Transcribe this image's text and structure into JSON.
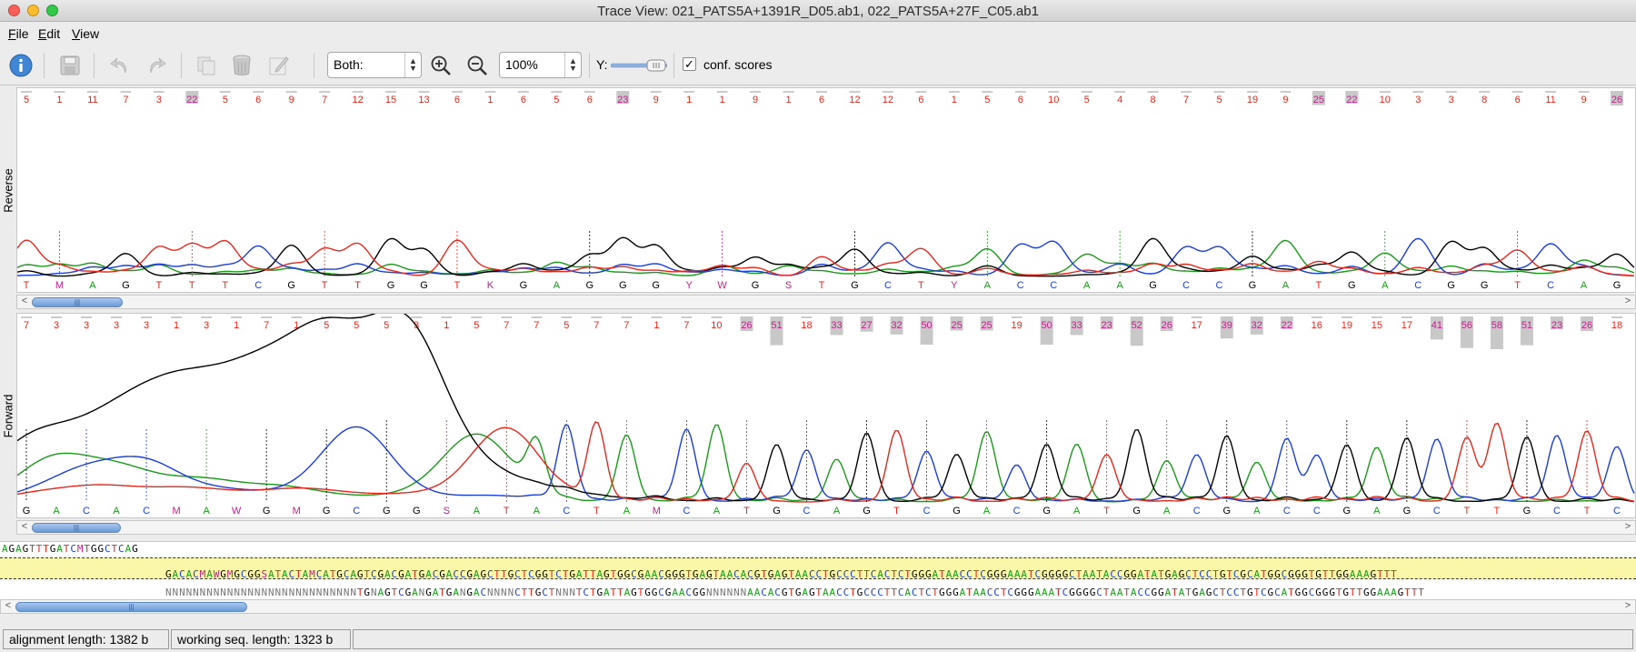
{
  "window": {
    "title": "Trace View: 021_PATS5A+1391R_D05.ab1, 022_PATS5A+27F_C05.ab1"
  },
  "menu": {
    "items": [
      {
        "label": "File",
        "mnemonic": "F",
        "rest": "ile"
      },
      {
        "label": "Edit",
        "mnemonic": "E",
        "rest": "dit"
      },
      {
        "label": "View",
        "mnemonic": "V",
        "rest": "iew"
      }
    ]
  },
  "toolbar": {
    "icons": [
      "info-icon",
      "save-icon",
      "undo-icon",
      "redo-icon",
      "copy-icon",
      "delete-icon",
      "edit-icon",
      "zoom-in-icon",
      "zoom-out-icon"
    ],
    "strand_select": "Both:",
    "zoom_select": "100%",
    "y_label": "Y:",
    "conf_scores_label": "conf. scores",
    "conf_scores_checked": true
  },
  "reverse": {
    "label": "Reverse",
    "scores": [
      "5",
      "1",
      "11",
      "7",
      "3",
      "22",
      "5",
      "6",
      "9",
      "7",
      "12",
      "15",
      "13",
      "6",
      "1",
      "6",
      "5",
      "6",
      "23",
      "9",
      "1",
      "1",
      "9",
      "1",
      "6",
      "12",
      "12",
      "6",
      "1",
      "5",
      "6",
      "10",
      "5",
      "4",
      "8",
      "7",
      "5",
      "19",
      "9",
      "25",
      "22",
      "10",
      "3",
      "3",
      "8",
      "6",
      "11",
      "9",
      "26"
    ],
    "bases": "TMAGTTTCGTTGGTKGAGGGYWGSTGCTYACCAAGCCGATGACGGTCAG"
  },
  "forward": {
    "label": "Forward",
    "scores": [
      "7",
      "3",
      "3",
      "3",
      "3",
      "1",
      "3",
      "1",
      "7",
      "1",
      "5",
      "5",
      "5",
      "3",
      "1",
      "5",
      "7",
      "7",
      "5",
      "7",
      "7",
      "1",
      "7",
      "10",
      "26",
      "51",
      "18",
      "33",
      "27",
      "32",
      "50",
      "25",
      "25",
      "19",
      "50",
      "33",
      "23",
      "52",
      "26",
      "17",
      "39",
      "32",
      "22",
      "16",
      "19",
      "15",
      "17",
      "41",
      "56",
      "58",
      "51",
      "23",
      "26",
      "18"
    ],
    "bases": "GACACMAWGMGCGGSATACTAMCATGCAGTCGACGATGACGACCGAGCTTGCTC"
  },
  "alignment": {
    "consensus_prefix": "AGAGTTTGATCMTGGCTCAG",
    "reverse_read": "GACACMAWGMGCGGSATACTAMCATGCAGTCGACGATGACGACCGAGCTTGCTCGGTCTGATTAGTGGCGAACGGGTGAGTAACACGTGAGTAACCTGCCCTTCACTCTGGGATAACCTCGGGAAATCGGGGCTAATACCGGATATGAGCTCCTGTCGCATGGCGGGTGTTGGAAAGTTT",
    "forward_read": "NNNNNNNNNNNNNNNNNNNNNNNNNNNNTGNAGTCGANGATGANGACNNNNCTTGCTNNNTCTGATTAGTGGCGAACGGNNNNNNAACACGTGAGTAACCTGCCCTTCACTCTGGGATAACCTCGGGAAATCGGGGCTAATACCGGATATGAGCTCCTGTCGCATGGCGGGTGTTGGAAAGTTT"
  },
  "status": {
    "alignment_length": "alignment length: 1382 b",
    "working_length": "working seq. length: 1323 b"
  },
  "colors": {
    "A": "#1a9a1a",
    "C": "#1a3ed6",
    "G": "#000000",
    "T": "#e8271c",
    "ambiguous": "#c0208a"
  }
}
